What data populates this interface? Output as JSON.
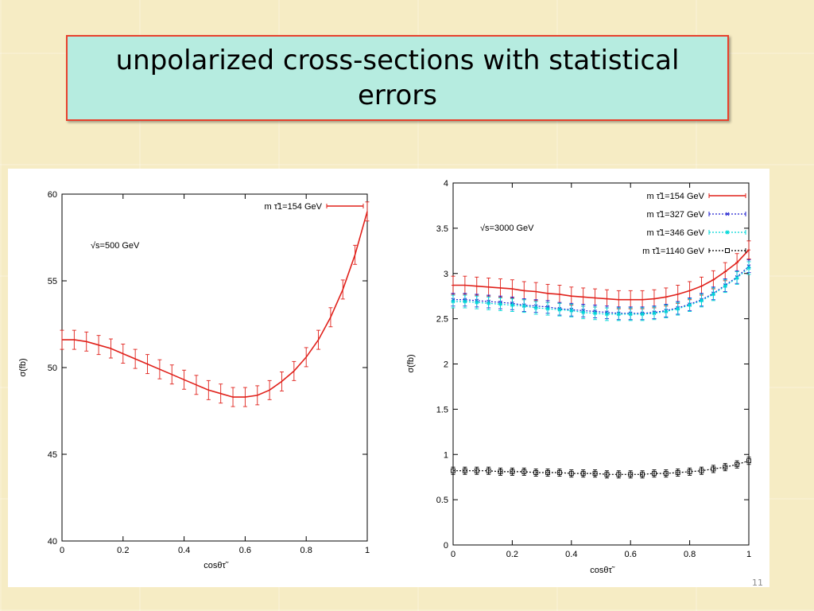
{
  "slide": {
    "title": "unpolarized cross-sections with statistical errors",
    "page_number": "11"
  },
  "colors": {
    "title_bg": "#b6ece0",
    "title_border": "#e8402c",
    "series_154": "#e0201a",
    "series_327": "#2020d0",
    "series_346": "#00d8d8",
    "series_1140": "#000000"
  },
  "chart_data": [
    {
      "type": "line",
      "annotation": "√s=500 GeV",
      "xlabel": "cosθτ̃",
      "ylabel": "σ(fb)",
      "xlim": [
        0,
        1
      ],
      "ylim": [
        40,
        60
      ],
      "xticks": [
        0,
        0.2,
        0.4,
        0.6,
        0.8,
        1
      ],
      "xtick_labels": [
        "0",
        "0.2",
        "0.4",
        "0.6",
        "0.8",
        "1"
      ],
      "yticks": [
        40,
        45,
        50,
        55,
        60
      ],
      "ytick_labels": [
        "40",
        "45",
        "50",
        "55",
        "60"
      ],
      "grid": false,
      "legend": "top-right",
      "x": [
        0,
        0.04,
        0.08,
        0.12,
        0.16,
        0.2,
        0.24,
        0.28,
        0.32,
        0.36,
        0.4,
        0.44,
        0.48,
        0.52,
        0.56,
        0.6,
        0.64,
        0.68,
        0.72,
        0.76,
        0.8,
        0.84,
        0.88,
        0.92,
        0.96,
        1
      ],
      "series": [
        {
          "name": "m τ̃1=154 GeV",
          "color": "#e0201a",
          "style": "solid",
          "values": [
            51.6,
            51.6,
            51.5,
            51.3,
            51.1,
            50.8,
            50.5,
            50.2,
            49.9,
            49.6,
            49.3,
            49.0,
            48.7,
            48.5,
            48.3,
            48.3,
            48.4,
            48.7,
            49.2,
            49.8,
            50.6,
            51.6,
            52.9,
            54.5,
            56.5,
            59.0
          ],
          "error": 0.55
        }
      ]
    },
    {
      "type": "line",
      "annotation": "√s=3000 GeV",
      "xlabel": "cosθτ̃",
      "ylabel": "σ(fb)",
      "xlim": [
        0,
        1
      ],
      "ylim": [
        0,
        4
      ],
      "xticks": [
        0,
        0.2,
        0.4,
        0.6,
        0.8,
        1
      ],
      "xtick_labels": [
        "0",
        "0.2",
        "0.4",
        "0.6",
        "0.8",
        "1"
      ],
      "yticks": [
        0,
        0.5,
        1,
        1.5,
        2,
        2.5,
        3,
        3.5,
        4
      ],
      "ytick_labels": [
        "0",
        "0.5",
        "1",
        "1.5",
        "2",
        "2.5",
        "3",
        "3.5",
        "4"
      ],
      "grid": false,
      "legend": "top-right",
      "x": [
        0,
        0.04,
        0.08,
        0.12,
        0.16,
        0.2,
        0.24,
        0.28,
        0.32,
        0.36,
        0.4,
        0.44,
        0.48,
        0.52,
        0.56,
        0.6,
        0.64,
        0.68,
        0.72,
        0.76,
        0.8,
        0.84,
        0.88,
        0.92,
        0.96,
        1
      ],
      "series": [
        {
          "name": "m τ̃1=154 GeV",
          "color": "#e0201a",
          "style": "solid",
          "marker": "plus",
          "values": [
            2.87,
            2.87,
            2.86,
            2.85,
            2.84,
            2.83,
            2.81,
            2.8,
            2.78,
            2.77,
            2.75,
            2.74,
            2.73,
            2.72,
            2.71,
            2.71,
            2.71,
            2.72,
            2.74,
            2.77,
            2.81,
            2.86,
            2.93,
            3.02,
            3.12,
            3.26
          ],
          "error": 0.1
        },
        {
          "name": "m τ̃1=327 GeV",
          "color": "#2020d0",
          "style": "dotted",
          "marker": "x",
          "values": [
            2.71,
            2.71,
            2.7,
            2.69,
            2.68,
            2.67,
            2.65,
            2.64,
            2.63,
            2.61,
            2.6,
            2.59,
            2.58,
            2.57,
            2.56,
            2.56,
            2.56,
            2.57,
            2.59,
            2.62,
            2.66,
            2.71,
            2.78,
            2.87,
            2.96,
            3.08
          ],
          "error": 0.07
        },
        {
          "name": "m τ̃1=346 GeV",
          "color": "#00d8d8",
          "style": "dotted",
          "marker": "star",
          "values": [
            2.69,
            2.69,
            2.68,
            2.67,
            2.66,
            2.65,
            2.64,
            2.62,
            2.61,
            2.6,
            2.59,
            2.57,
            2.56,
            2.55,
            2.55,
            2.55,
            2.55,
            2.56,
            2.58,
            2.61,
            2.65,
            2.7,
            2.77,
            2.86,
            2.95,
            3.06
          ],
          "error": 0.07
        },
        {
          "name": "m τ̃1=1140 GeV",
          "color": "#000000",
          "style": "dotted",
          "marker": "square",
          "values": [
            0.82,
            0.82,
            0.82,
            0.82,
            0.81,
            0.81,
            0.81,
            0.8,
            0.8,
            0.8,
            0.79,
            0.79,
            0.79,
            0.78,
            0.78,
            0.78,
            0.78,
            0.79,
            0.79,
            0.8,
            0.81,
            0.82,
            0.84,
            0.86,
            0.89,
            0.93
          ],
          "error": 0.04
        }
      ]
    }
  ]
}
